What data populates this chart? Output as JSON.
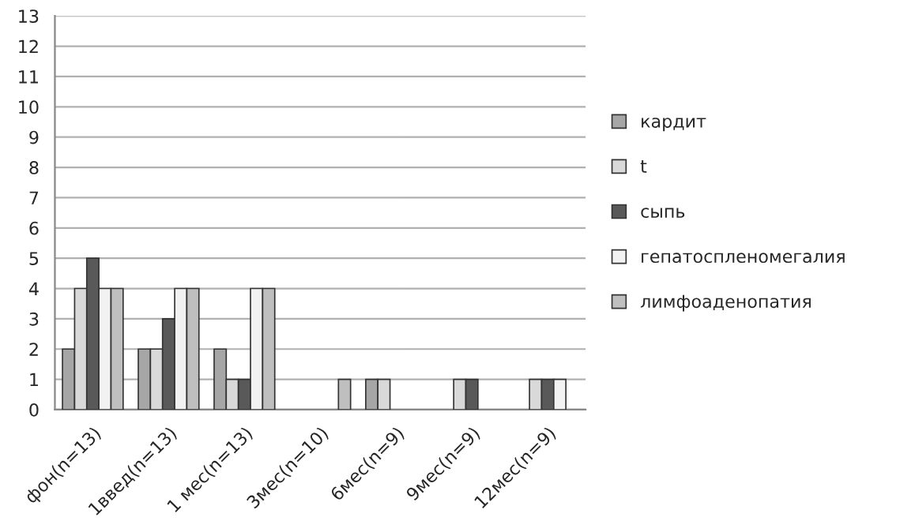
{
  "chart_data": {
    "type": "bar",
    "categories": [
      "фон(n=13)",
      "1введ(n=13)",
      "1 мес(n=13)",
      "3мес(n=10)",
      "6мес(n=9)",
      "9мес(n=9)",
      "12мес(n=9)"
    ],
    "series": [
      {
        "name": "кардит",
        "color": "#a6a6a6",
        "values": [
          2,
          2,
          2,
          0,
          1,
          0,
          0
        ]
      },
      {
        "name": "t",
        "color": "#d9d9d9",
        "values": [
          4,
          2,
          1,
          0,
          1,
          1,
          1
        ]
      },
      {
        "name": "сыпь",
        "color": "#595959",
        "values": [
          5,
          3,
          1,
          0,
          0,
          1,
          1
        ]
      },
      {
        "name": "гепатоспленомегалия",
        "color": "#f2f2f2",
        "values": [
          4,
          4,
          4,
          0,
          0,
          0,
          1
        ]
      },
      {
        "name": "лимфоаденопатия",
        "color": "#bfbfbf",
        "values": [
          4,
          4,
          4,
          1,
          0,
          0,
          0
        ]
      }
    ],
    "ylim": [
      0,
      13
    ],
    "yticks": [
      0,
      1,
      2,
      3,
      4,
      5,
      6,
      7,
      8,
      9,
      10,
      11,
      12,
      13
    ],
    "grid": "y",
    "legend": "right"
  }
}
